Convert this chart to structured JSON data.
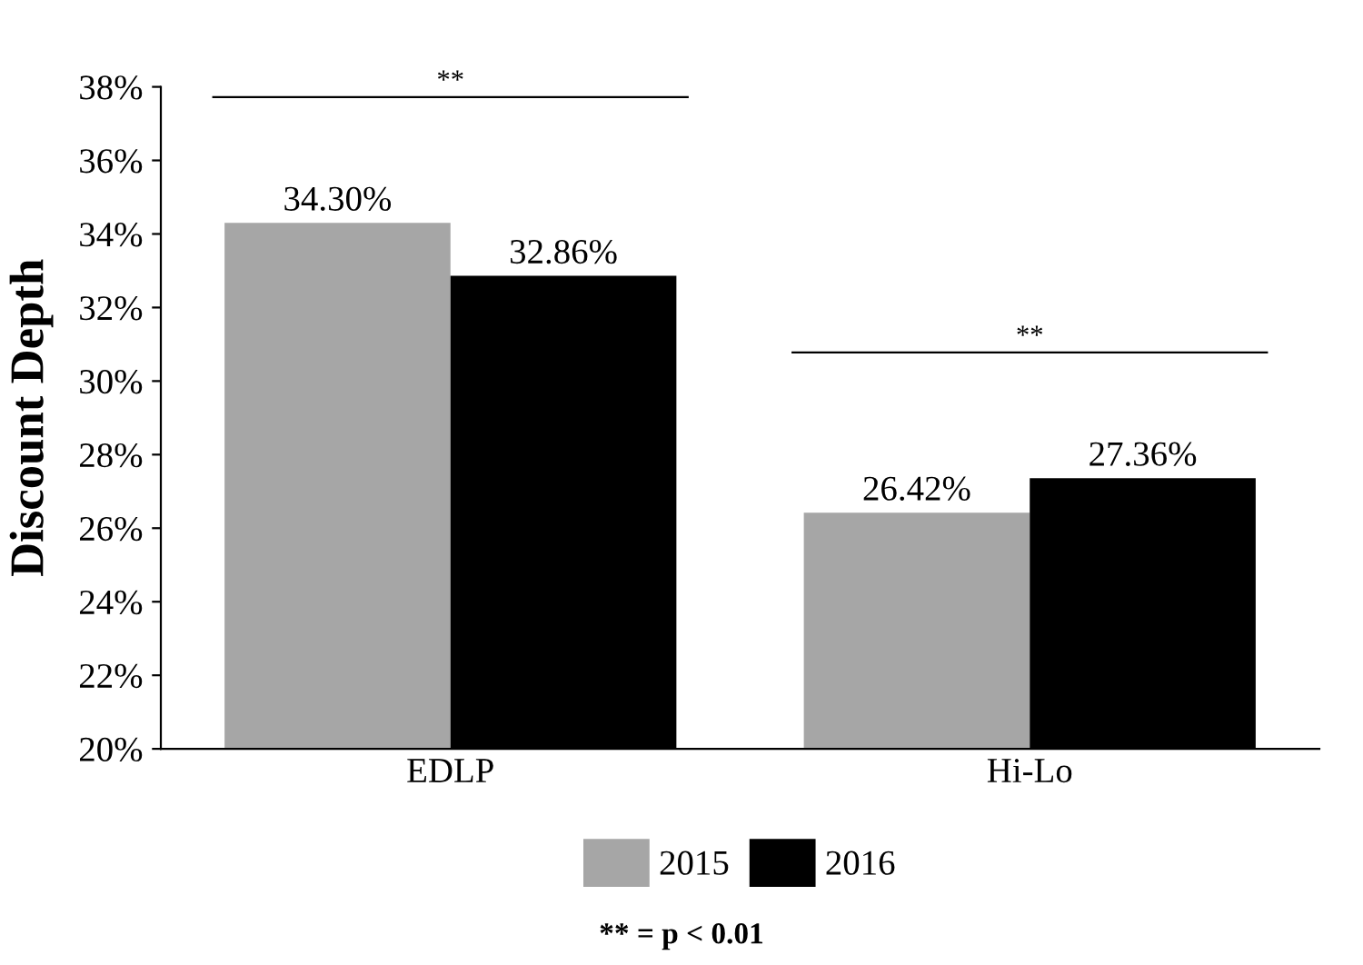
{
  "chart_data": {
    "type": "bar",
    "ylabel": "Discount Depth",
    "categories": [
      "EDLP",
      "Hi-Lo"
    ],
    "series": [
      {
        "name": "2015",
        "color": "#a6a6a6",
        "values": [
          34.3,
          26.42
        ],
        "value_labels": [
          "34.30%",
          "26.42%"
        ]
      },
      {
        "name": "2016",
        "color": "#000000",
        "values": [
          32.86,
          27.36
        ],
        "value_labels": [
          "32.86%",
          "27.36%"
        ]
      }
    ],
    "ylim": [
      20,
      38
    ],
    "yticks": [
      {
        "value": 20,
        "label": "20%"
      },
      {
        "value": 22,
        "label": "22%"
      },
      {
        "value": 24,
        "label": "24%"
      },
      {
        "value": 26,
        "label": "26%"
      },
      {
        "value": 28,
        "label": "28%"
      },
      {
        "value": 30,
        "label": "30%"
      },
      {
        "value": 32,
        "label": "32%"
      },
      {
        "value": 34,
        "label": "34%"
      },
      {
        "value": 36,
        "label": "36%"
      },
      {
        "value": 38,
        "label": "38%"
      }
    ],
    "grid": false,
    "legend": "bottom",
    "annotations": [
      "**",
      "**",
      "** = p < 0.01"
    ]
  }
}
